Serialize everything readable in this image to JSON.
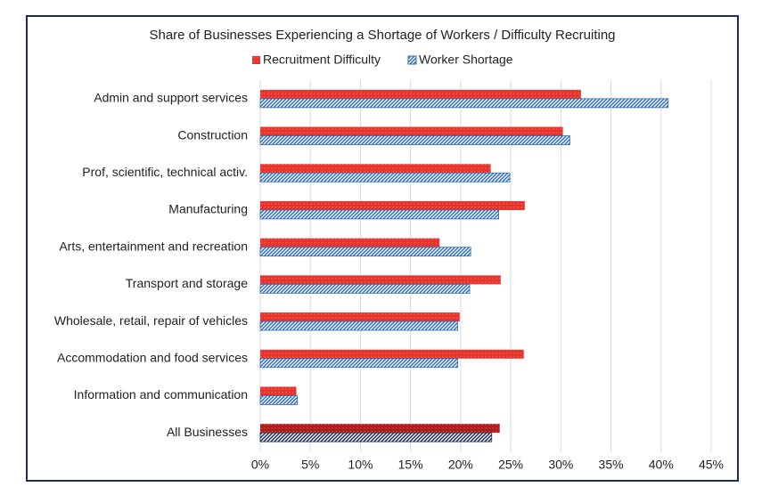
{
  "chart_data": {
    "type": "hbar",
    "title": "Share of Businesses Experiencing a Shortage of Workers / Difficulty Recruiting",
    "categories": [
      "Admin and support services",
      "Construction",
      "Prof, scientific, technical activ.",
      "Manufacturing",
      "Arts, entertainment and recreation",
      "Transport and storage",
      "Wholesale, retail, repair of vehicles",
      "Accommodation and food services",
      "Information and communication",
      "All Businesses"
    ],
    "series": [
      {
        "name": "Recruitment Difficulty",
        "color": "#e8322c",
        "pattern": "dots",
        "colors": [
          "#e8322c",
          "#e8322c",
          "#e8322c",
          "#e8322c",
          "#e8322c",
          "#e8322c",
          "#e8322c",
          "#e8322c",
          "#e8322c",
          "#b01c1c"
        ],
        "values": [
          32.0,
          30.2,
          23.0,
          26.4,
          17.9,
          24.0,
          19.9,
          26.3,
          3.6,
          23.9
        ]
      },
      {
        "name": "Worker Shortage",
        "color": "#2e6db4",
        "pattern": "hatch",
        "colors": [
          "#2e6db4",
          "#2e6db4",
          "#2e6db4",
          "#2e6db4",
          "#2e6db4",
          "#2e6db4",
          "#2e6db4",
          "#2e6db4",
          "#2e6db4",
          "#1a2f5c"
        ],
        "values": [
          40.7,
          30.9,
          24.9,
          23.8,
          21.0,
          20.9,
          19.7,
          19.7,
          3.7,
          23.1
        ]
      }
    ],
    "xlim": [
      0,
      45
    ],
    "xticks": [
      {
        "value": 0,
        "label": "0%"
      },
      {
        "value": 5,
        "label": "5%"
      },
      {
        "value": 10,
        "label": "10%"
      },
      {
        "value": 15,
        "label": "15%"
      },
      {
        "value": 20,
        "label": "20%"
      },
      {
        "value": 25,
        "label": "25%"
      },
      {
        "value": 30,
        "label": "30%"
      },
      {
        "value": 35,
        "label": "35%"
      },
      {
        "value": 40,
        "label": "40%"
      },
      {
        "value": 45,
        "label": "45%"
      }
    ],
    "grid": true,
    "legend": "top"
  }
}
